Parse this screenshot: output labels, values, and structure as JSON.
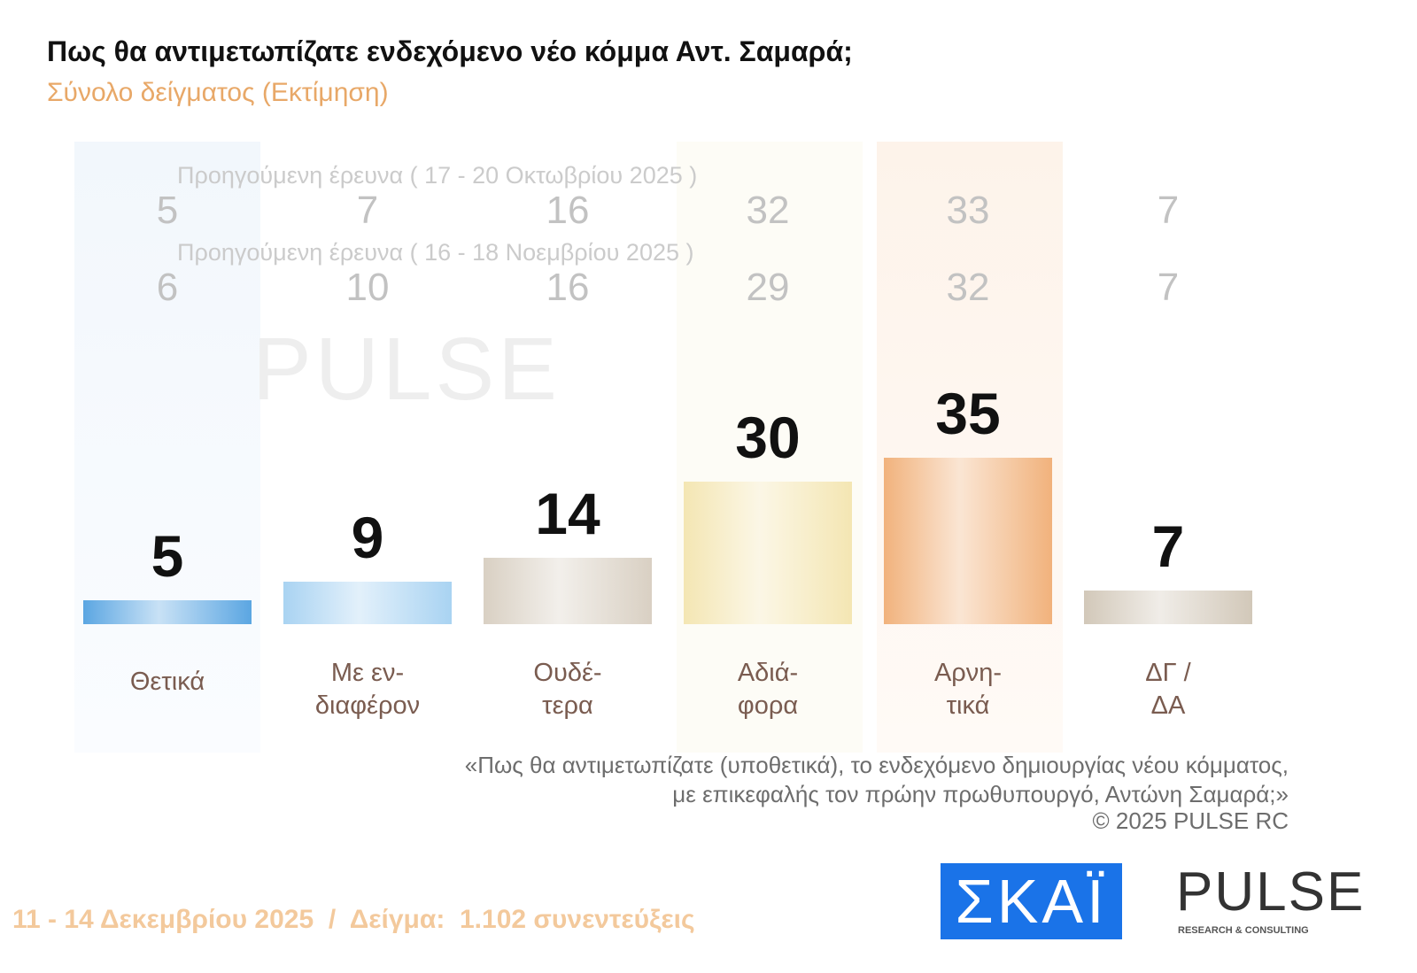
{
  "chart_data": {
    "type": "bar",
    "title": "Πως θα αντιμετωπίζατε ενδεχόμενο νέο κόμμα Αντ. Σαμαρά;",
    "subtitle": "Σύνολο δείγματος  (Εκτίμηση)",
    "categories": [
      "Θετικά",
      "Με εν-\nδιαφέρον",
      "Ουδέ-\nτερα",
      "Αδιά-\nφορα",
      "Αρνη-\nτικά",
      "ΔΓ /\nΔΑ"
    ],
    "values": [
      5,
      9,
      14,
      30,
      35,
      7
    ],
    "colors": [
      "#5ba6e2",
      "#a9d3f2",
      "#d9d0c3",
      "#f4e6b3",
      "#f1b27c",
      "#d2c8b9"
    ],
    "previous": [
      {
        "label": "Προηγούμενη έρευνα ( 17 - 20 Οκτωβρίου 2025 )",
        "values": [
          5,
          7,
          16,
          32,
          33,
          7
        ]
      },
      {
        "label": "Προηγούμενη έρευνα ( 16 - 18 Νοεμβρίου 2025 )",
        "values": [
          6,
          10,
          16,
          29,
          32,
          7
        ]
      }
    ],
    "note": [
      "«Πως θα αντιμετωπίζατε (υποθετικά), το ενδεχόμενο δημιουργίας νέου κόμματος,",
      "με επικεφαλής τον πρώην πρωθυπουργό, Αντώνη Σαμαρά;»"
    ],
    "copyright": "©  2025  PULSE RC",
    "footer": "11 - 14 Δεκεμβρίου 2025  /  Δείγμα:  1.102 συνεντεύξεις",
    "logos": {
      "skai": "ΣΚΑΪ",
      "pulse": "PULSE",
      "pulse_tagline": "RESEARCH & CONSULTING"
    }
  }
}
